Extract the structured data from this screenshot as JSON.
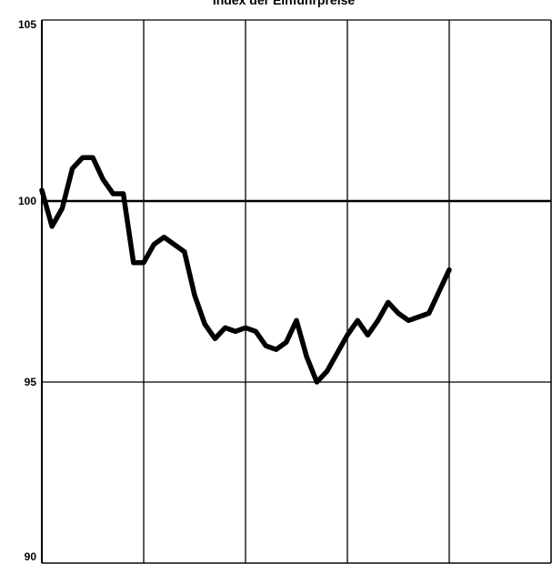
{
  "chart_data": {
    "type": "line",
    "title": "Index der Einfuhrpreise",
    "xlabel": "",
    "ylabel": "",
    "ylim": [
      90,
      105
    ],
    "xlim": [
      0,
      50
    ],
    "y_ticks": [
      90,
      95,
      100,
      105
    ],
    "y_tick_labels": [
      "90",
      "95",
      "100",
      "105"
    ],
    "reference_line": 100,
    "vertical_grid_x": [
      0,
      10,
      20,
      30,
      40
    ],
    "grid": true,
    "line_color": "#000000",
    "series": [
      {
        "x": [
          0,
          1,
          2,
          3,
          4,
          5,
          6,
          7,
          8,
          9,
          10,
          11,
          12,
          13,
          14,
          15,
          16,
          17,
          18,
          19,
          20,
          21,
          22,
          23,
          24,
          25,
          26,
          27,
          28,
          29,
          30,
          31,
          32,
          33,
          34,
          35,
          36,
          37,
          38,
          39,
          40
        ],
        "y": [
          100.3,
          99.3,
          99.8,
          100.9,
          101.2,
          101.2,
          100.6,
          100.2,
          100.2,
          98.3,
          98.3,
          98.8,
          99.0,
          98.8,
          98.6,
          97.4,
          96.6,
          96.2,
          96.5,
          96.4,
          96.5,
          96.4,
          96.0,
          95.9,
          96.1,
          96.7,
          95.7,
          95.0,
          95.3,
          95.8,
          96.3,
          96.7,
          96.3,
          96.7,
          97.2,
          96.9,
          96.7,
          96.8,
          96.9,
          97.5,
          98.1
        ]
      }
    ]
  }
}
